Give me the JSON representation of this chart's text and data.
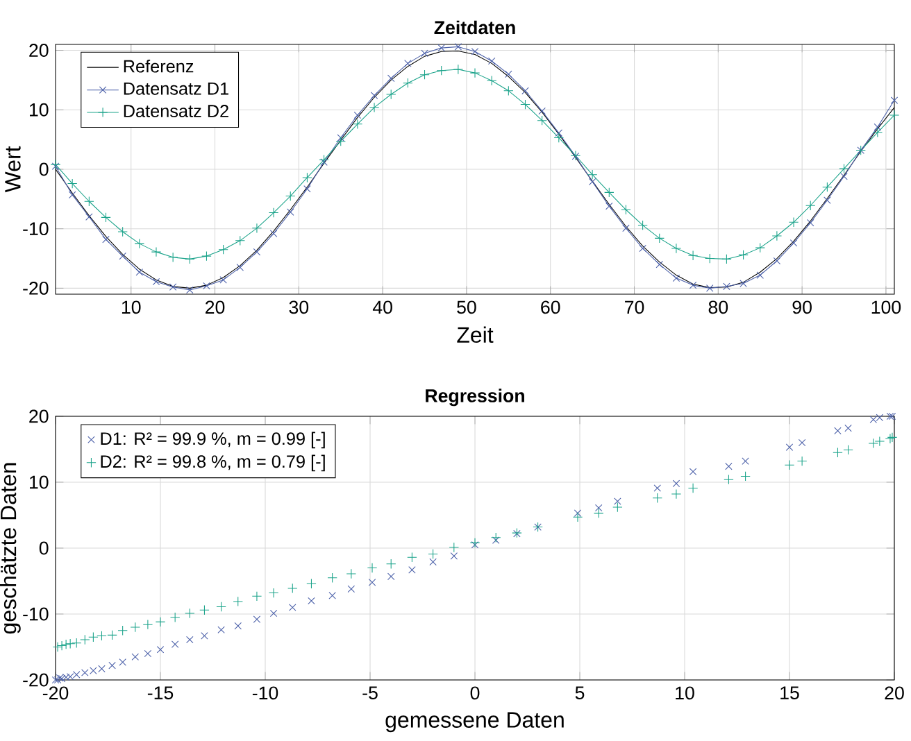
{
  "chart_data": [
    {
      "type": "line",
      "title": "Zeitdaten",
      "xlabel": "Zeit",
      "ylabel": "Wert",
      "x": [
        1,
        3,
        5,
        7,
        9,
        11,
        13,
        15,
        17,
        19,
        21,
        23,
        25,
        27,
        29,
        31,
        33,
        35,
        37,
        39,
        41,
        43,
        45,
        47,
        49,
        51,
        53,
        55,
        57,
        59,
        61,
        63,
        65,
        67,
        69,
        71,
        73,
        75,
        77,
        79,
        81,
        83,
        85,
        87,
        89,
        91,
        93,
        95,
        97,
        99,
        101
      ],
      "xlim": [
        1,
        101
      ],
      "xticks": [
        10,
        20,
        30,
        40,
        50,
        60,
        70,
        80,
        90,
        100
      ],
      "ylim": [
        -21,
        21
      ],
      "yticks": [
        -20,
        -10,
        0,
        10,
        20
      ],
      "grid": true,
      "legend": "top left",
      "line_style": "solid",
      "series": [
        {
          "name": "Referenz",
          "color": "#000000",
          "marker": "none",
          "values": [
            0,
            -4.0,
            -7.8,
            -11.3,
            -14.3,
            -16.8,
            -18.6,
            -19.7,
            -20.0,
            -19.5,
            -18.2,
            -16.2,
            -13.6,
            -10.4,
            -6.8,
            -3.0,
            1.0,
            4.9,
            8.7,
            12.1,
            15.0,
            17.3,
            19.0,
            19.8,
            19.9,
            19.3,
            17.8,
            15.6,
            12.9,
            9.6,
            5.9,
            2.0,
            -2.0,
            -5.9,
            -9.6,
            -12.9,
            -15.6,
            -17.8,
            -19.3,
            -19.9,
            -19.8,
            -19.0,
            -17.3,
            -15.0,
            -12.1,
            -8.7,
            -4.9,
            -1.0,
            3.0,
            6.8,
            10.4
          ]
        },
        {
          "name": "Datensatz D1",
          "color": "#4a5fa8",
          "marker": "cross",
          "values": [
            0.5,
            -4.3,
            -8.0,
            -11.8,
            -14.6,
            -17.3,
            -18.9,
            -19.8,
            -20.3,
            -19.6,
            -18.6,
            -16.5,
            -13.9,
            -10.8,
            -7.2,
            -3.3,
            1.2,
            5.3,
            9.1,
            12.4,
            15.3,
            17.8,
            19.5,
            20.4,
            20.6,
            19.8,
            18.2,
            16.0,
            13.2,
            9.8,
            6.1,
            2.2,
            -2.1,
            -6.2,
            -9.9,
            -13.3,
            -16.0,
            -18.3,
            -19.5,
            -20.0,
            -19.7,
            -19.2,
            -17.8,
            -15.4,
            -12.4,
            -9.0,
            -5.2,
            -1.2,
            3.2,
            7.1,
            11.6
          ]
        },
        {
          "name": "Datensatz D2",
          "color": "#1aa38a",
          "marker": "plus",
          "values": [
            0.8,
            -2.4,
            -5.4,
            -8.1,
            -10.5,
            -12.5,
            -13.9,
            -14.8,
            -15.1,
            -14.6,
            -13.5,
            -12.0,
            -9.9,
            -7.3,
            -4.5,
            -1.4,
            1.6,
            4.7,
            7.6,
            10.4,
            12.6,
            14.5,
            15.9,
            16.6,
            16.8,
            16.2,
            14.9,
            13.2,
            10.9,
            8.2,
            5.3,
            2.3,
            -0.9,
            -3.9,
            -6.8,
            -9.4,
            -11.6,
            -13.3,
            -14.5,
            -15.0,
            -15.1,
            -14.4,
            -13.2,
            -11.2,
            -8.9,
            -6.1,
            -3.0,
            0.1,
            3.2,
            6.2,
            9.1
          ]
        }
      ]
    },
    {
      "type": "scatter",
      "title": "Regression",
      "xlabel": "gemessene Daten",
      "ylabel": "geschätzte Daten",
      "xlim": [
        -20,
        20
      ],
      "xticks": [
        -20,
        -15,
        -10,
        -5,
        0,
        5,
        10,
        15,
        20
      ],
      "ylim": [
        -20,
        20
      ],
      "yticks": [
        -20,
        -10,
        0,
        10,
        20
      ],
      "grid": true,
      "legend": "top left",
      "series": [
        {
          "name": "D1: R² = 99.9 %, m = 0.99 [-]",
          "color": "#4a5fa8",
          "marker": "cross",
          "x": [
            0,
            -4.0,
            -7.8,
            -11.3,
            -14.3,
            -16.8,
            -18.6,
            -19.7,
            -20.0,
            -19.5,
            -18.2,
            -16.2,
            -13.6,
            -10.4,
            -6.8,
            -3.0,
            1.0,
            4.9,
            8.7,
            12.1,
            15.0,
            17.3,
            19.0,
            19.8,
            19.9,
            19.3,
            17.8,
            15.6,
            12.9,
            9.6,
            5.9,
            2.0,
            -2.0,
            -5.9,
            -9.6,
            -12.9,
            -15.6,
            -17.8,
            -19.3,
            -19.9,
            -19.8,
            -19.0,
            -17.3,
            -15.0,
            -12.1,
            -8.7,
            -4.9,
            -1.0,
            3.0,
            6.8,
            10.4
          ],
          "values": [
            0.5,
            -4.3,
            -8.0,
            -11.8,
            -14.6,
            -17.3,
            -18.9,
            -19.8,
            -20.0,
            -19.6,
            -18.6,
            -16.5,
            -13.9,
            -10.8,
            -7.2,
            -3.3,
            1.2,
            5.3,
            9.1,
            12.4,
            15.3,
            17.8,
            19.5,
            20.0,
            20.0,
            19.8,
            18.2,
            16.0,
            13.2,
            9.8,
            6.1,
            2.2,
            -2.1,
            -6.2,
            -9.9,
            -13.3,
            -16.0,
            -18.3,
            -19.5,
            -20.0,
            -19.7,
            -19.2,
            -17.8,
            -15.4,
            -12.4,
            -9.0,
            -5.2,
            -1.2,
            3.2,
            7.1,
            11.6
          ]
        },
        {
          "name": "D2: R² = 99.8 %, m = 0.79 [-]",
          "color": "#1aa38a",
          "marker": "plus",
          "x": [
            0,
            -4.0,
            -7.8,
            -11.3,
            -14.3,
            -16.8,
            -18.6,
            -19.7,
            -19.5,
            -18.2,
            -16.2,
            -13.6,
            -10.4,
            -6.8,
            -3.0,
            1.0,
            4.9,
            8.7,
            12.1,
            15.0,
            17.3,
            19.0,
            19.8,
            19.9,
            19.3,
            17.8,
            15.6,
            12.9,
            9.6,
            5.9,
            2.0,
            -2.0,
            -5.9,
            -9.6,
            -12.9,
            -15.6,
            -17.8,
            -19.3,
            -19.9,
            -19.0,
            -17.3,
            -15.0,
            -12.1,
            -8.7,
            -4.9,
            -1.0,
            3.0,
            6.8,
            10.4
          ],
          "values": [
            0.8,
            -2.4,
            -5.4,
            -8.1,
            -10.5,
            -12.5,
            -13.9,
            -14.8,
            -14.6,
            -13.5,
            -12.0,
            -9.9,
            -7.3,
            -4.5,
            -1.4,
            1.6,
            4.7,
            7.6,
            10.4,
            12.6,
            14.5,
            15.9,
            16.6,
            16.8,
            16.2,
            14.9,
            13.2,
            10.9,
            8.2,
            5.3,
            2.3,
            -0.9,
            -3.9,
            -6.8,
            -9.4,
            -11.6,
            -13.3,
            -14.5,
            -15.0,
            -14.4,
            -13.2,
            -11.2,
            -8.9,
            -6.1,
            -3.0,
            0.1,
            3.2,
            6.2,
            9.1
          ]
        }
      ]
    }
  ]
}
